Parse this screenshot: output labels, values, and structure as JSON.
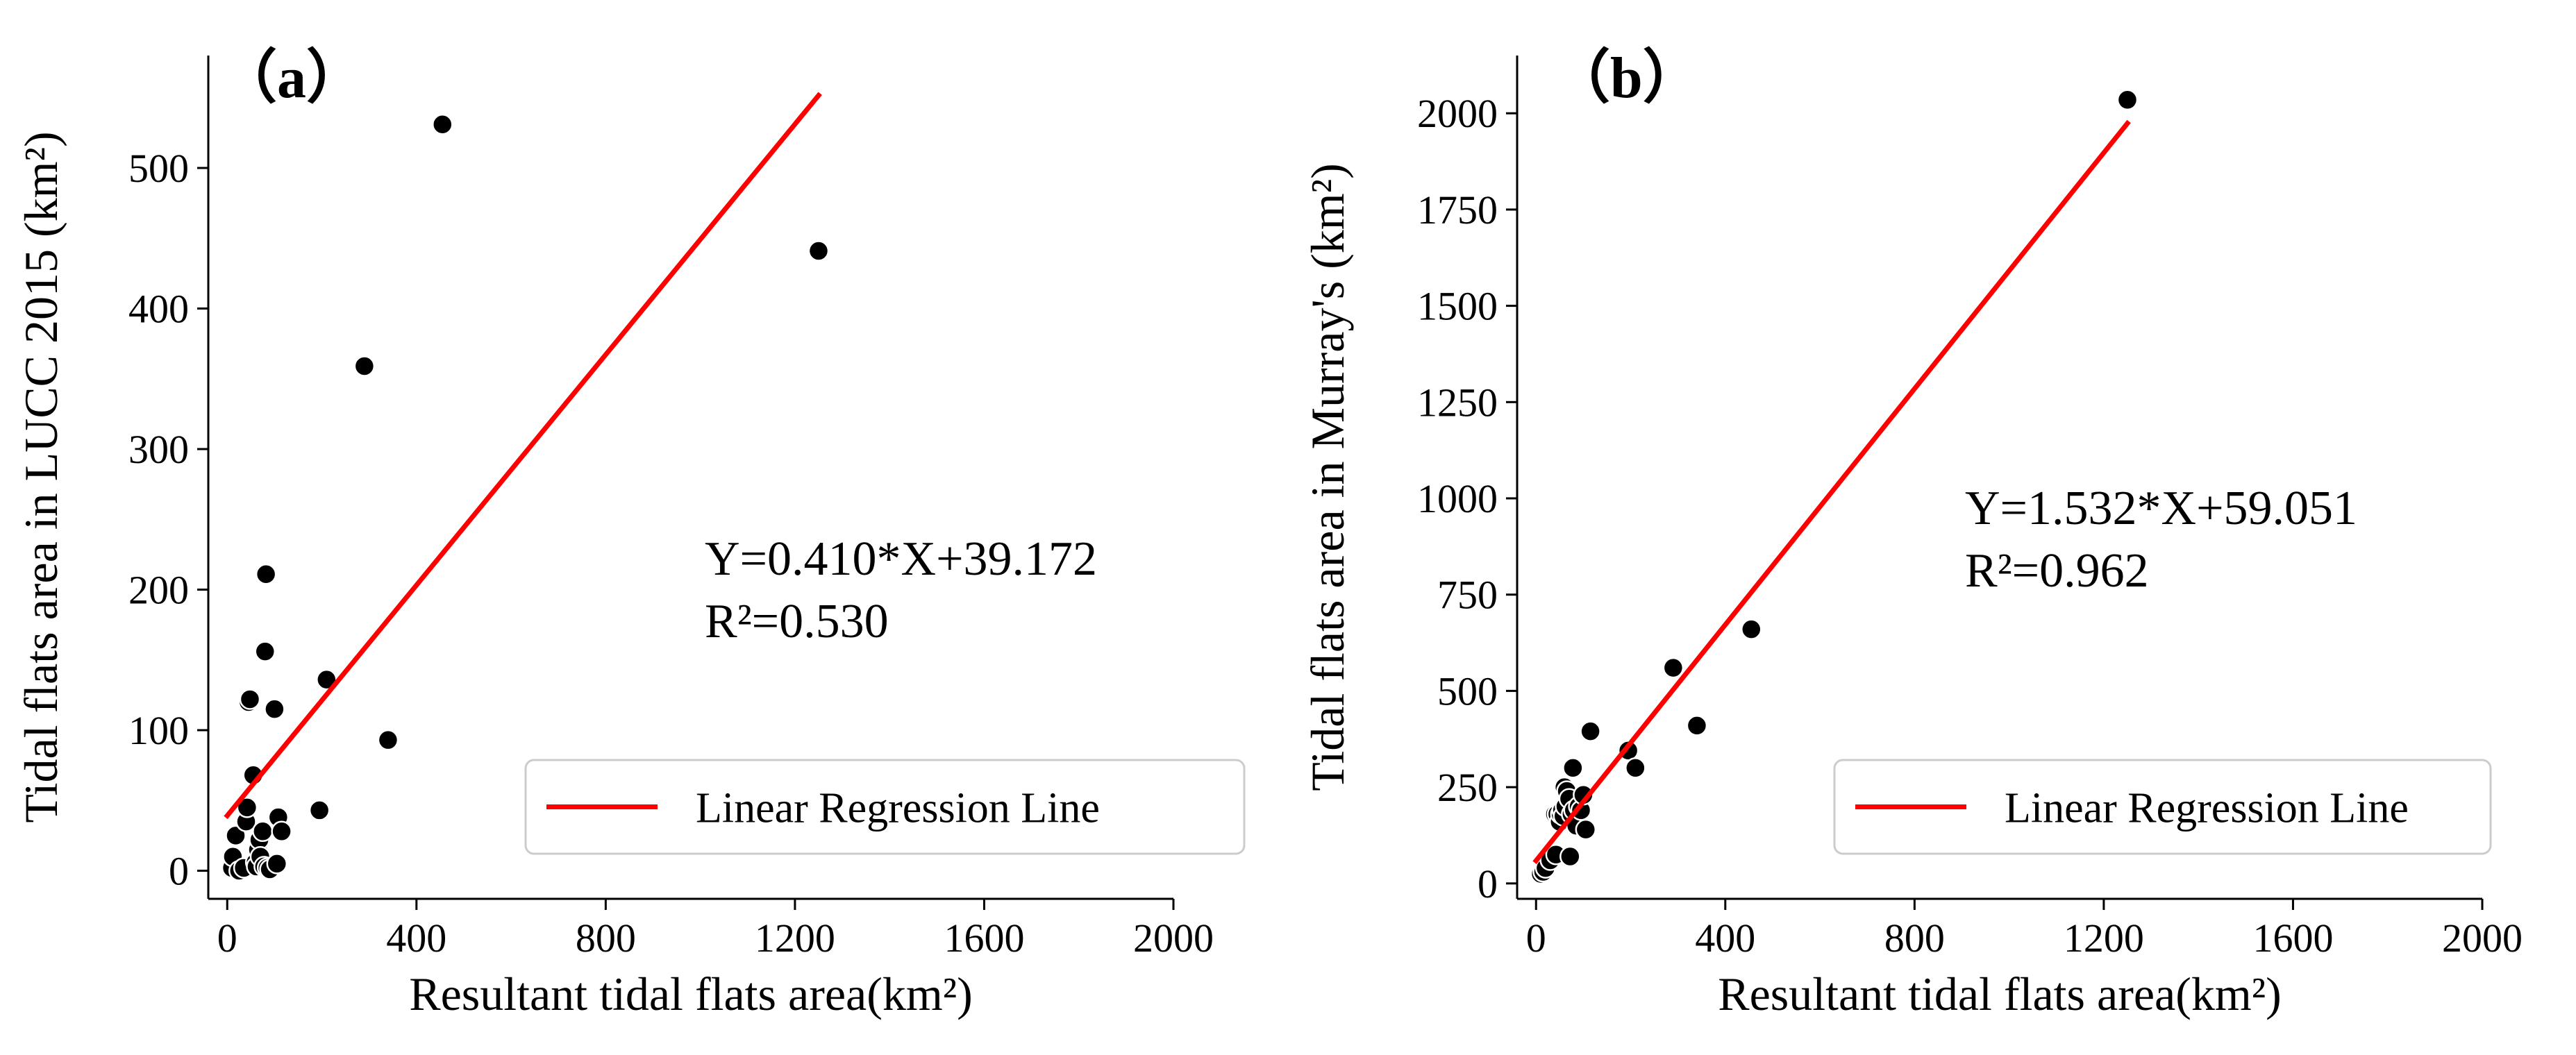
{
  "chart_data": [
    {
      "type": "scatter",
      "panel_label": "（a）",
      "xlabel": "Resultant tidal flats area(km²)",
      "ylabel": "Tidal flats area in LUCC 2015 (km²)",
      "xlim": [
        -40,
        2000
      ],
      "ylim": [
        -20,
        580
      ],
      "xticks": [
        0,
        400,
        800,
        1200,
        1600,
        2000
      ],
      "yticks": [
        0,
        100,
        200,
        300,
        400,
        500
      ],
      "xtick_labels": [
        "0",
        "400",
        "800",
        "1200",
        "1600",
        "2000"
      ],
      "ytick_labels": [
        "0",
        "100",
        "200",
        "300",
        "400",
        "500"
      ],
      "points": [
        [
          10,
          2
        ],
        [
          12,
          10
        ],
        [
          18,
          25
        ],
        [
          25,
          0
        ],
        [
          35,
          2
        ],
        [
          40,
          35
        ],
        [
          42,
          45
        ],
        [
          45,
          120
        ],
        [
          48,
          122
        ],
        [
          55,
          68
        ],
        [
          60,
          6
        ],
        [
          62,
          3
        ],
        [
          65,
          15
        ],
        [
          68,
          22
        ],
        [
          70,
          10
        ],
        [
          75,
          28
        ],
        [
          78,
          3
        ],
        [
          80,
          156
        ],
        [
          82,
          211
        ],
        [
          85,
          2
        ],
        [
          90,
          1
        ],
        [
          100,
          115
        ],
        [
          105,
          5
        ],
        [
          108,
          38
        ],
        [
          115,
          28
        ],
        [
          195,
          43
        ],
        [
          210,
          136
        ],
        [
          290,
          359
        ],
        [
          340,
          93
        ],
        [
          455,
          531
        ],
        [
          1250,
          441
        ]
      ],
      "regression": {
        "slope": 0.41,
        "intercept": 39.172,
        "x_range": [
          0,
          1250
        ],
        "color": "#ff0000"
      },
      "equation": "Y=0.410*X+39.172",
      "r2": "R²=0.530",
      "legend_label": "Linear Regression Line",
      "legend_position": "lower right"
    },
    {
      "type": "scatter",
      "panel_label": "（b）",
      "xlabel": "Resultant tidal flats area(km²)",
      "ylabel": "Tidal flats area in Murray's (km²)",
      "xlim": [
        -40,
        2000
      ],
      "ylim": [
        -40,
        2150
      ],
      "xticks": [
        0,
        400,
        800,
        1200,
        1600,
        2000
      ],
      "yticks": [
        0,
        250,
        500,
        750,
        1000,
        1250,
        1500,
        1750,
        2000
      ],
      "xtick_labels": [
        "0",
        "400",
        "800",
        "1200",
        "1600",
        "2000"
      ],
      "ytick_labels": [
        "0",
        "250",
        "500",
        "750",
        "1000",
        "1250",
        "1500",
        "1750",
        "2000"
      ],
      "points": [
        [
          10,
          25
        ],
        [
          15,
          30
        ],
        [
          20,
          40
        ],
        [
          30,
          60
        ],
        [
          40,
          180
        ],
        [
          42,
          75
        ],
        [
          45,
          180
        ],
        [
          50,
          160
        ],
        [
          52,
          180
        ],
        [
          55,
          190
        ],
        [
          58,
          175
        ],
        [
          60,
          250
        ],
        [
          62,
          200
        ],
        [
          65,
          240
        ],
        [
          70,
          220
        ],
        [
          72,
          70
        ],
        [
          75,
          180
        ],
        [
          78,
          300
        ],
        [
          80,
          190
        ],
        [
          85,
          150
        ],
        [
          90,
          200
        ],
        [
          95,
          190
        ],
        [
          100,
          230
        ],
        [
          105,
          140
        ],
        [
          115,
          395
        ],
        [
          195,
          345
        ],
        [
          210,
          300
        ],
        [
          290,
          560
        ],
        [
          340,
          410
        ],
        [
          455,
          660
        ],
        [
          1250,
          2035
        ]
      ],
      "regression": {
        "slope": 1.532,
        "intercept": 59.051,
        "x_range": [
          0,
          1250
        ],
        "color": "#ff0000"
      },
      "equation": "Y=1.532*X+59.051",
      "r2": "R²=0.962",
      "legend_label": "Linear Regression Line",
      "legend_position": "lower right"
    }
  ]
}
